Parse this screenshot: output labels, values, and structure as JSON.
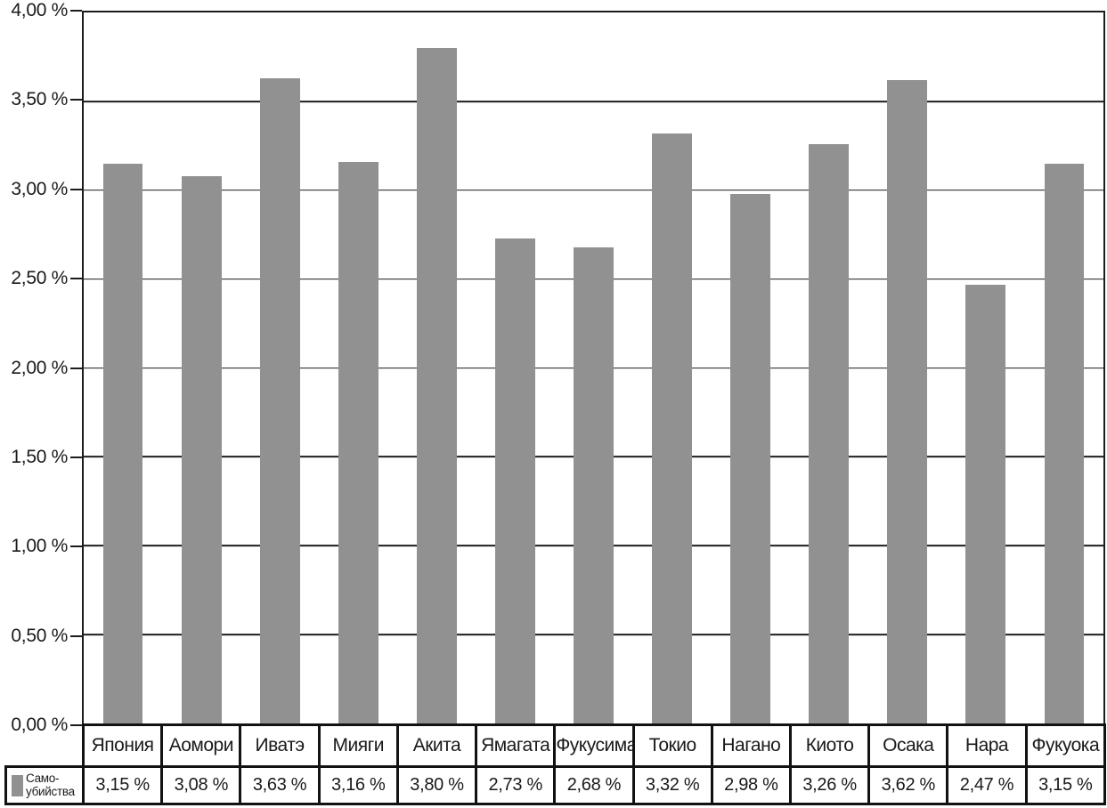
{
  "chart_data": {
    "type": "bar",
    "title": "",
    "xlabel": "",
    "ylabel": "",
    "categories": [
      "Япония",
      "Аомори",
      "Иватэ",
      "Мияги",
      "Акита",
      "Ямагата",
      "Фукусима",
      "Токио",
      "Нагано",
      "Киото",
      "Осака",
      "Нара",
      "Фукуока"
    ],
    "series": [
      {
        "name": "Само-убийства",
        "values": [
          3.15,
          3.08,
          3.63,
          3.16,
          3.8,
          2.73,
          2.68,
          3.32,
          2.98,
          3.26,
          3.62,
          2.47,
          3.15
        ]
      }
    ],
    "value_labels": [
      "3,15 %",
      "3,08 %",
      "3,63 %",
      "3,16 %",
      "3,80 %",
      "2,73 %",
      "2,68 %",
      "3,32 %",
      "2,98 %",
      "3,26 %",
      "3,62 %",
      "2,47 %",
      "3,15 %"
    ],
    "ylim": [
      0,
      4
    ],
    "y_tick_step": 0.5,
    "y_tick_labels_top_to_bottom": [
      "4,00 %",
      "3,50 %",
      "3,00 %",
      "2,50 %",
      "2,00 %",
      "1,50 %",
      "1,00 %",
      "0,50 %",
      "0,00 %"
    ],
    "grid": "horizontal-major",
    "legend": {
      "position": "bottom-left",
      "name": "Само-убийства",
      "lines": [
        "Само-",
        "убийства"
      ]
    },
    "colors": {
      "bar_fill": "#919191",
      "axis_border": "#1c1c1c",
      "table_border": "#121212",
      "background": "#ffffff"
    }
  }
}
